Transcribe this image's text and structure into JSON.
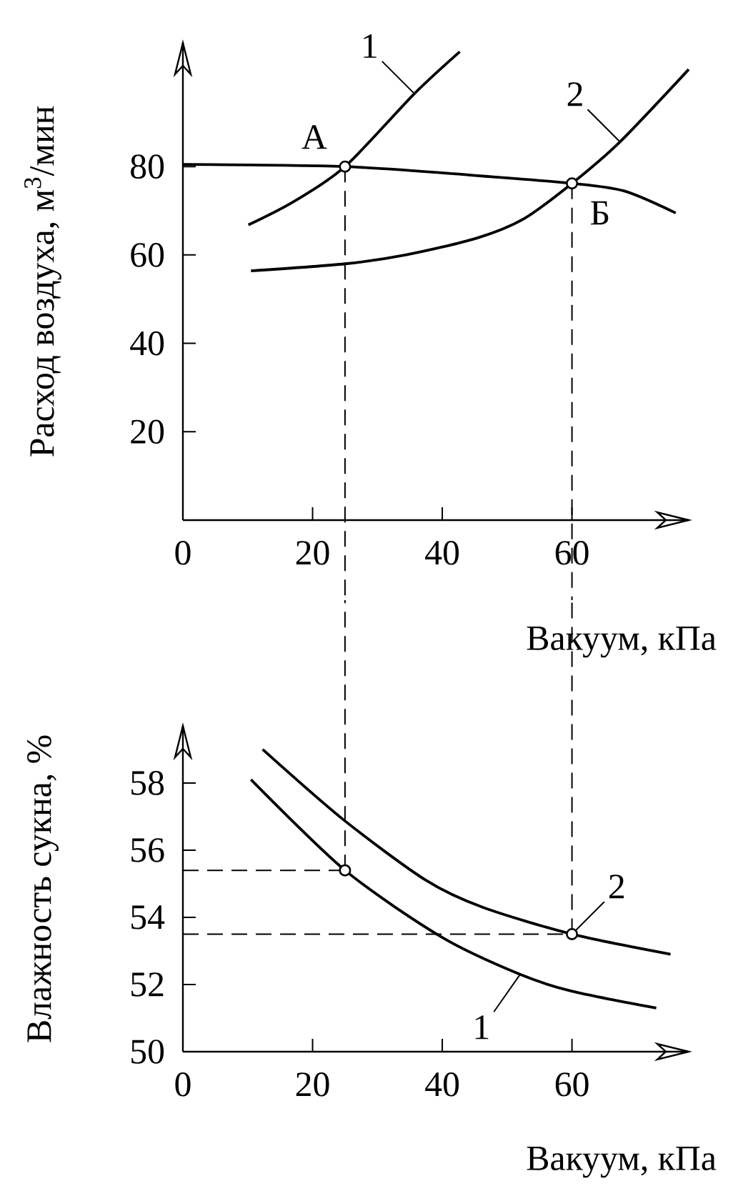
{
  "chart_data": [
    {
      "type": "line",
      "xlabel": "Вакуум, кПа",
      "ylabel": "Расход воздуха, м$^{3}$/мин",
      "xlim": [
        0,
        78
      ],
      "ylim": [
        0,
        108
      ],
      "xticks": [
        0,
        20,
        40,
        60
      ],
      "yticks": [
        20,
        40,
        60,
        80
      ],
      "series": [
        {
          "color": "#000000",
          "x": [
            0,
            25,
            45,
            60,
            68,
            76
          ],
          "values": [
            80.5,
            80,
            78,
            76.2,
            74.5,
            69.5
          ]
        },
        {
          "name": "1",
          "color": "#000000",
          "x": [
            10.1,
            17,
            25,
            35.7,
            42.7
          ],
          "values": [
            66.8,
            72,
            80,
            96.5,
            106
          ]
        },
        {
          "name": "2",
          "color": "#000000",
          "x": [
            10.5,
            25,
            34.3,
            45.3,
            52.6,
            60,
            67.4,
            78
          ],
          "values": [
            56.4,
            58,
            60,
            63.8,
            68.2,
            76.2,
            85.6,
            102
          ]
        },
        {
          "type": "scatter",
          "color": "#000000",
          "x": [
            25,
            60
          ],
          "values": [
            80,
            76.2
          ]
        }
      ],
      "annotations": [
        {
          "text": "А",
          "x": 25,
          "y": 80
        },
        {
          "text": "Б",
          "x": 60,
          "y": 76.2
        }
      ],
      "ref_lines": [
        {
          "axis": "x",
          "value": 25,
          "line_style": "dashed"
        },
        {
          "axis": "x",
          "value": 60,
          "line_style": "dashed"
        }
      ]
    },
    {
      "type": "line",
      "xlabel": "Вакуум, кПа",
      "ylabel": "Влажность сукна, %",
      "xlim": [
        0,
        78
      ],
      "ylim": [
        50,
        59.7
      ],
      "xticks": [
        0,
        20,
        40,
        60
      ],
      "yticks": [
        50,
        52,
        54,
        56,
        58
      ],
      "series": [
        {
          "name": "1",
          "color": "#000000",
          "x": [
            10.5,
            25,
            40,
            52,
            60,
            73
          ],
          "values": [
            58.1,
            55.4,
            53.4,
            52.3,
            51.8,
            51.3
          ]
        },
        {
          "name": "2",
          "color": "#000000",
          "x": [
            12.3,
            24.8,
            37.5,
            46.2,
            60,
            75.2
          ],
          "values": [
            59.0,
            56.9,
            55.1,
            54.3,
            53.5,
            52.9
          ]
        },
        {
          "type": "scatter",
          "color": "#000000",
          "x": [
            25,
            60
          ],
          "values": [
            55.4,
            53.5
          ]
        }
      ],
      "ref_lines": [
        {
          "axis": "x",
          "value": 25,
          "line_style": "dashed"
        },
        {
          "axis": "x",
          "value": 60,
          "line_style": "dashed"
        },
        {
          "axis": "y",
          "value": 55.4,
          "line_style": "dashed"
        },
        {
          "axis": "y",
          "value": 53.5,
          "line_style": "dashed"
        }
      ]
    }
  ]
}
